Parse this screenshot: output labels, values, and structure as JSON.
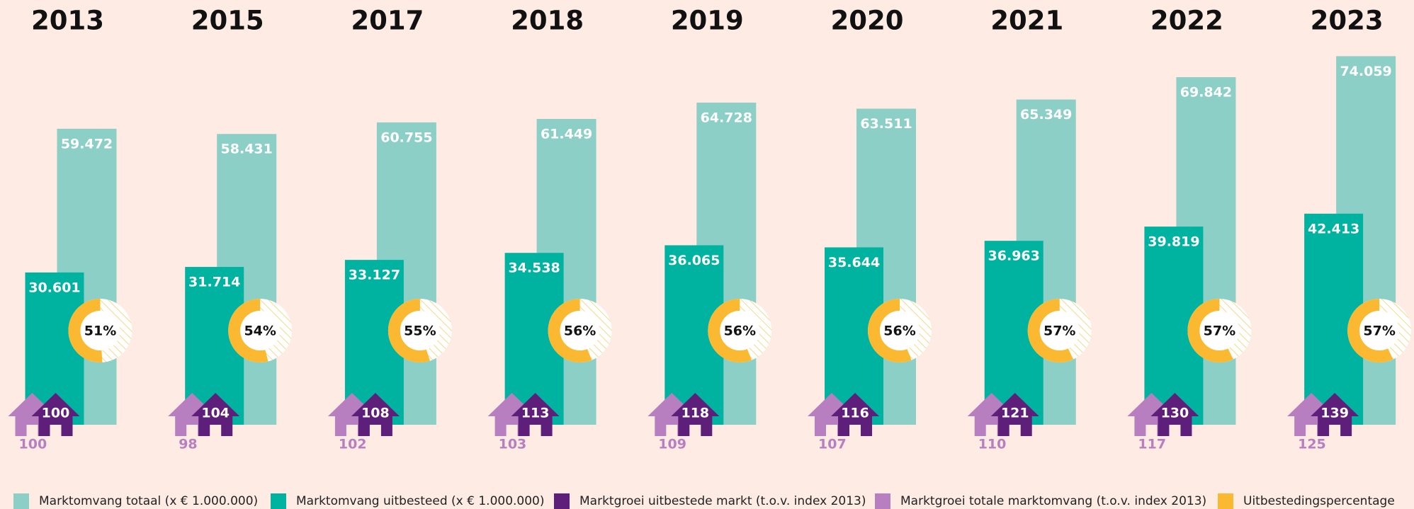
{
  "chart_data": {
    "type": "bar",
    "categories": [
      "2013",
      "2015",
      "2017",
      "2018",
      "2019",
      "2020",
      "2021",
      "2022",
      "2023"
    ],
    "series": [
      {
        "name": "Marktomvang totaal (x € 1.000.000)",
        "color": "#8ccfc6",
        "values": [
          59472,
          58431,
          60755,
          61449,
          64728,
          63511,
          65349,
          69842,
          74059
        ],
        "value_labels": [
          "59.472",
          "58.431",
          "60.755",
          "61.449",
          "64.728",
          "63.511",
          "65.349",
          "69.842",
          "74.059"
        ]
      },
      {
        "name": "Marktomvang uitbesteed (x € 1.000.000)",
        "color": "#00b3a1",
        "values": [
          30601,
          31714,
          33127,
          34538,
          36065,
          35644,
          36963,
          39819,
          42413
        ],
        "value_labels": [
          "30.601",
          "31.714",
          "33.127",
          "34.538",
          "36.065",
          "35.644",
          "36.963",
          "39.819",
          "42.413"
        ]
      },
      {
        "name": "Marktgroei uitbestede markt (t.o.v. index 2013)",
        "color": "#5e1f7b",
        "values": [
          100,
          104,
          108,
          113,
          118,
          116,
          121,
          130,
          139
        ]
      },
      {
        "name": "Marktgroei totale marktomvang (t.o.v. index 2013)",
        "color": "#b77fbf",
        "values": [
          100,
          98,
          102,
          103,
          109,
          107,
          110,
          117,
          125
        ]
      },
      {
        "name": "Uitbestedingspercentage",
        "color": "#fbb932",
        "values": [
          51,
          54,
          55,
          56,
          56,
          56,
          57,
          57,
          57
        ],
        "value_labels": [
          "51%",
          "54%",
          "55%",
          "56%",
          "56%",
          "56%",
          "57%",
          "57%",
          "57%"
        ]
      }
    ]
  }
}
